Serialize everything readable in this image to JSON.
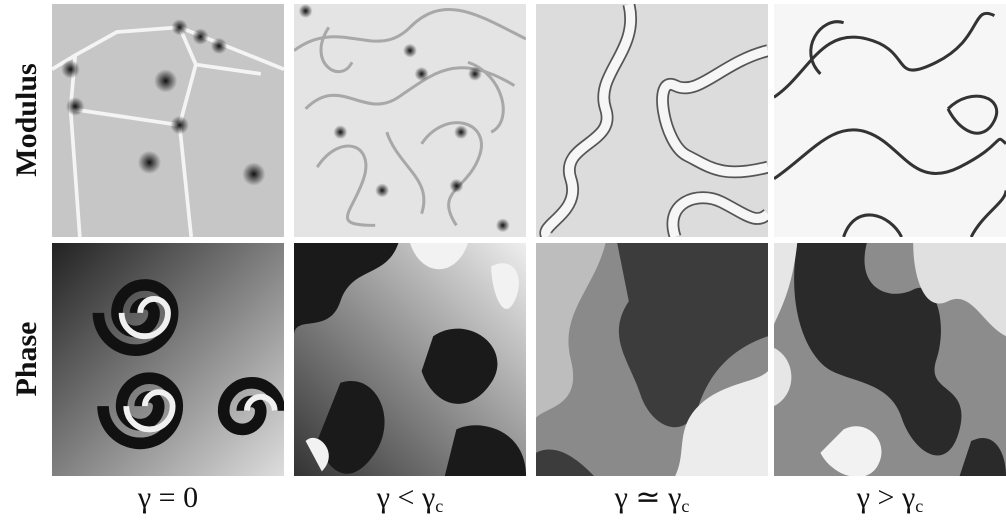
{
  "row_labels": [
    "Modulus",
    "Phase"
  ],
  "column_labels": [
    {
      "text": "γ = 0"
    },
    {
      "text": "γ < γ",
      "subscript": "c"
    },
    {
      "text": "γ ≃ γ",
      "subscript": "c"
    },
    {
      "text": "γ > γ",
      "subscript": "c"
    }
  ]
}
